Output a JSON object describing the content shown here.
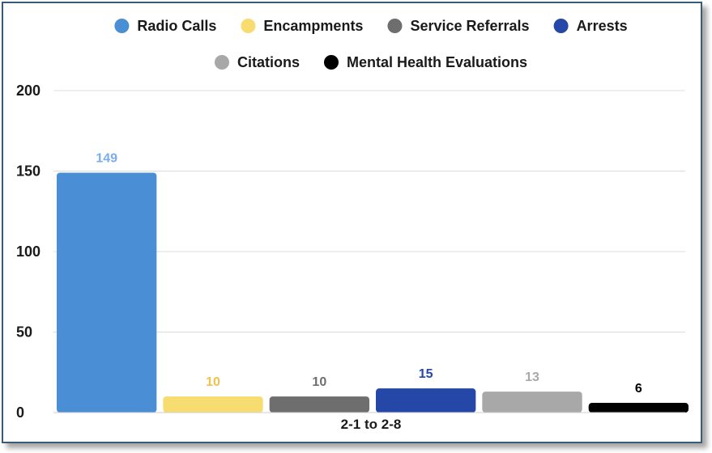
{
  "chart_data": {
    "type": "bar",
    "categories": [
      "2-1 to 2-8"
    ],
    "series": [
      {
        "name": "Radio Calls",
        "values": [
          149
        ],
        "color": "#4a8fd6",
        "label_color": "#7aaeea"
      },
      {
        "name": "Encampments",
        "values": [
          10
        ],
        "color": "#f7dc6f",
        "label_color": "#f2c14e"
      },
      {
        "name": "Service Referrals",
        "values": [
          10
        ],
        "color": "#6e6e6e",
        "label_color": "#6e6e6e"
      },
      {
        "name": "Arrests",
        "values": [
          15
        ],
        "color": "#2547a8",
        "label_color": "#2547a8"
      },
      {
        "name": "Citations",
        "values": [
          13
        ],
        "color": "#a8a8a8",
        "label_color": "#a8a8a8"
      },
      {
        "name": "Mental Health Evaluations",
        "values": [
          6
        ],
        "color": "#000000",
        "label_color": "#000000"
      }
    ],
    "yticks": [
      0,
      50,
      100,
      150,
      200
    ],
    "ylim": [
      0,
      200
    ],
    "grid": true,
    "legend_position": "top",
    "data_labels": true
  }
}
